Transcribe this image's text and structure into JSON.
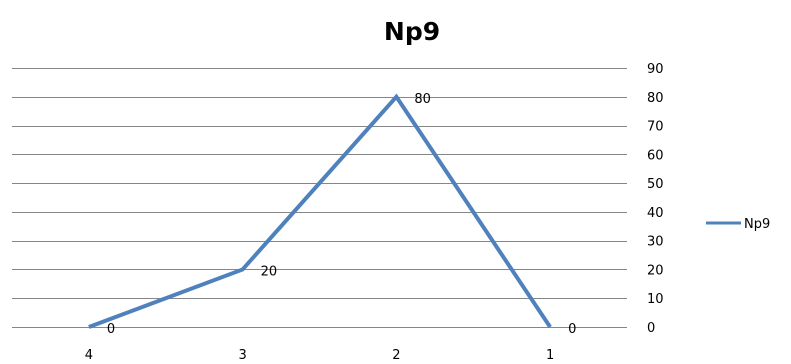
{
  "chart_data": {
    "type": "line",
    "title": "Np9",
    "categories": [
      "4",
      "3",
      "2",
      "1"
    ],
    "series": [
      {
        "name": "Np9",
        "values": [
          0,
          20,
          80,
          0
        ],
        "color": "#4F81BD"
      }
    ],
    "data_labels": [
      "0",
      "20",
      "80",
      "0"
    ],
    "y_ticks": [
      "0",
      "10",
      "20",
      "30",
      "40",
      "50",
      "60",
      "70",
      "80",
      "90"
    ],
    "ylim": [
      0,
      90
    ],
    "y_axis_side": "right",
    "grid": true,
    "gridline_color": "#868686",
    "legend_position": "right"
  }
}
